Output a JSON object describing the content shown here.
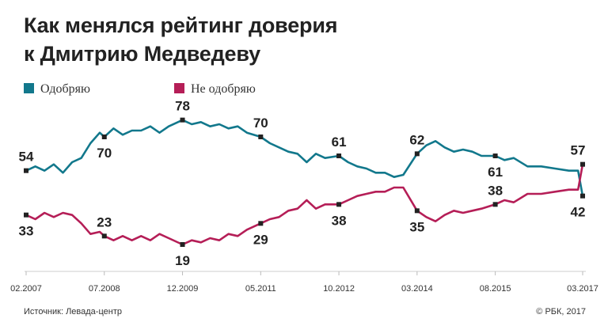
{
  "title_line1": "Как менялся рейтинг доверия",
  "title_line2": "к Дмитрию Медведеву",
  "legend": {
    "approve": "Одобряю",
    "disapprove": "Не одобряю"
  },
  "colors": {
    "approve": "#12788c",
    "disapprove": "#b51e57",
    "axis": "#cccccc",
    "text": "#222222"
  },
  "footer": {
    "source": "Источник: Левада-центр",
    "copyright": "© РБК, 2017"
  },
  "chart_data": {
    "type": "line",
    "x_ticks": [
      "02.2007",
      "07.2008",
      "12.2009",
      "05.2011",
      "10.2012",
      "03.2014",
      "08.2015",
      "03.2017"
    ],
    "xlim": [
      "2007-02",
      "2017-03"
    ],
    "ylim": [
      10,
      85
    ],
    "series": [
      {
        "name": "Одобряю",
        "color": "#12788c",
        "points": [
          [
            "2007-02",
            54
          ],
          [
            "2007-04",
            56
          ],
          [
            "2007-06",
            54
          ],
          [
            "2007-08",
            57
          ],
          [
            "2007-10",
            53
          ],
          [
            "2007-12",
            58
          ],
          [
            "2008-02",
            60
          ],
          [
            "2008-04",
            67
          ],
          [
            "2008-06",
            72
          ],
          [
            "2008-07",
            70
          ],
          [
            "2008-09",
            74
          ],
          [
            "2008-11",
            71
          ],
          [
            "2009-01",
            73
          ],
          [
            "2009-03",
            73
          ],
          [
            "2009-05",
            75
          ],
          [
            "2009-07",
            72
          ],
          [
            "2009-09",
            75
          ],
          [
            "2009-12",
            78
          ],
          [
            "2010-02",
            76
          ],
          [
            "2010-04",
            77
          ],
          [
            "2010-06",
            75
          ],
          [
            "2010-08",
            76
          ],
          [
            "2010-10",
            74
          ],
          [
            "2010-12",
            75
          ],
          [
            "2011-02",
            72
          ],
          [
            "2011-05",
            70
          ],
          [
            "2011-07",
            67
          ],
          [
            "2011-09",
            65
          ],
          [
            "2011-11",
            63
          ],
          [
            "2012-01",
            62
          ],
          [
            "2012-03",
            58
          ],
          [
            "2012-05",
            62
          ],
          [
            "2012-07",
            60
          ],
          [
            "2012-10",
            61
          ],
          [
            "2012-12",
            58
          ],
          [
            "2013-02",
            56
          ],
          [
            "2013-04",
            55
          ],
          [
            "2013-06",
            53
          ],
          [
            "2013-08",
            53
          ],
          [
            "2013-10",
            51
          ],
          [
            "2013-12",
            52
          ],
          [
            "2014-03",
            62
          ],
          [
            "2014-05",
            66
          ],
          [
            "2014-07",
            68
          ],
          [
            "2014-09",
            65
          ],
          [
            "2014-11",
            63
          ],
          [
            "2015-01",
            64
          ],
          [
            "2015-03",
            63
          ],
          [
            "2015-05",
            61
          ],
          [
            "2015-08",
            61
          ],
          [
            "2015-10",
            59
          ],
          [
            "2015-12",
            60
          ],
          [
            "2016-03",
            56
          ],
          [
            "2016-06",
            56
          ],
          [
            "2016-09",
            55
          ],
          [
            "2016-12",
            54
          ],
          [
            "2017-02",
            54
          ],
          [
            "2017-03",
            42
          ]
        ]
      },
      {
        "name": "Не одобряю",
        "color": "#b51e57",
        "points": [
          [
            "2007-02",
            33
          ],
          [
            "2007-04",
            31
          ],
          [
            "2007-06",
            34
          ],
          [
            "2007-08",
            32
          ],
          [
            "2007-10",
            34
          ],
          [
            "2007-12",
            33
          ],
          [
            "2008-02",
            29
          ],
          [
            "2008-04",
            24
          ],
          [
            "2008-06",
            25
          ],
          [
            "2008-07",
            23
          ],
          [
            "2008-09",
            21
          ],
          [
            "2008-11",
            23
          ],
          [
            "2009-01",
            21
          ],
          [
            "2009-03",
            23
          ],
          [
            "2009-05",
            21
          ],
          [
            "2009-07",
            24
          ],
          [
            "2009-09",
            22
          ],
          [
            "2009-12",
            19
          ],
          [
            "2010-02",
            21
          ],
          [
            "2010-04",
            20
          ],
          [
            "2010-06",
            22
          ],
          [
            "2010-08",
            21
          ],
          [
            "2010-10",
            24
          ],
          [
            "2010-12",
            23
          ],
          [
            "2011-02",
            26
          ],
          [
            "2011-05",
            29
          ],
          [
            "2011-07",
            31
          ],
          [
            "2011-09",
            32
          ],
          [
            "2011-11",
            35
          ],
          [
            "2012-01",
            36
          ],
          [
            "2012-03",
            40
          ],
          [
            "2012-05",
            36
          ],
          [
            "2012-07",
            38
          ],
          [
            "2012-10",
            38
          ],
          [
            "2012-12",
            40
          ],
          [
            "2013-02",
            42
          ],
          [
            "2013-04",
            43
          ],
          [
            "2013-06",
            44
          ],
          [
            "2013-08",
            44
          ],
          [
            "2013-10",
            46
          ],
          [
            "2013-12",
            46
          ],
          [
            "2014-03",
            35
          ],
          [
            "2014-05",
            32
          ],
          [
            "2014-07",
            30
          ],
          [
            "2014-09",
            33
          ],
          [
            "2014-11",
            35
          ],
          [
            "2015-01",
            34
          ],
          [
            "2015-03",
            35
          ],
          [
            "2015-05",
            36
          ],
          [
            "2015-08",
            38
          ],
          [
            "2015-10",
            40
          ],
          [
            "2015-12",
            39
          ],
          [
            "2016-03",
            43
          ],
          [
            "2016-06",
            43
          ],
          [
            "2016-09",
            44
          ],
          [
            "2016-12",
            45
          ],
          [
            "2017-02",
            45
          ],
          [
            "2017-03",
            57
          ]
        ]
      }
    ],
    "labels": [
      {
        "series": 0,
        "x": "2007-02",
        "y": 54,
        "text": "54",
        "pos": "above"
      },
      {
        "series": 0,
        "x": "2008-07",
        "y": 70,
        "text": "70",
        "pos": "below"
      },
      {
        "series": 0,
        "x": "2009-12",
        "y": 78,
        "text": "78",
        "pos": "above"
      },
      {
        "series": 0,
        "x": "2011-05",
        "y": 70,
        "text": "70",
        "pos": "above"
      },
      {
        "series": 0,
        "x": "2012-10",
        "y": 61,
        "text": "61",
        "pos": "above"
      },
      {
        "series": 0,
        "x": "2014-03",
        "y": 62,
        "text": "62",
        "pos": "above"
      },
      {
        "series": 0,
        "x": "2015-08",
        "y": 61,
        "text": "61",
        "pos": "below"
      },
      {
        "series": 0,
        "x": "2017-03",
        "y": 42,
        "text": "42",
        "pos": "below-left"
      },
      {
        "series": 1,
        "x": "2007-02",
        "y": 33,
        "text": "33",
        "pos": "below"
      },
      {
        "series": 1,
        "x": "2008-07",
        "y": 23,
        "text": "23",
        "pos": "above"
      },
      {
        "series": 1,
        "x": "2009-12",
        "y": 19,
        "text": "19",
        "pos": "below"
      },
      {
        "series": 1,
        "x": "2011-05",
        "y": 29,
        "text": "29",
        "pos": "below"
      },
      {
        "series": 1,
        "x": "2012-10",
        "y": 38,
        "text": "38",
        "pos": "below"
      },
      {
        "series": 1,
        "x": "2014-03",
        "y": 35,
        "text": "35",
        "pos": "below"
      },
      {
        "series": 1,
        "x": "2015-08",
        "y": 38,
        "text": "38",
        "pos": "above"
      },
      {
        "series": 1,
        "x": "2017-03",
        "y": 57,
        "text": "57",
        "pos": "above-left"
      }
    ],
    "grid": false,
    "legend_position": "top-left"
  }
}
